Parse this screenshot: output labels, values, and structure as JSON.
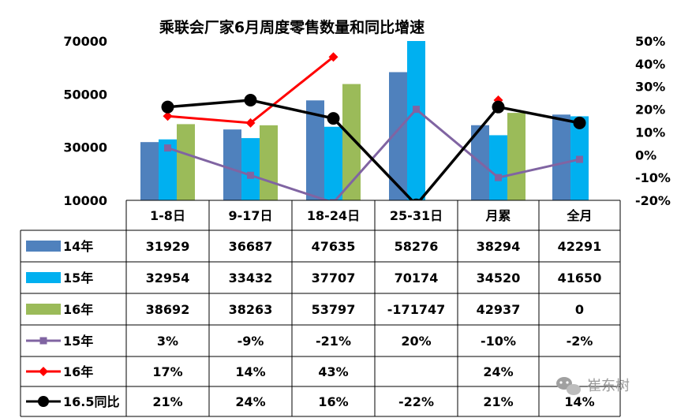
{
  "chart_data": {
    "type": "bar",
    "title": "乘联会厂家6月周度零售数量和同比增速",
    "categories": [
      "1-8日",
      "9-17日",
      "18-24日",
      "25-31日",
      "月累",
      "全月"
    ],
    "y_left": {
      "ticks": [
        "70000",
        "50000",
        "30000",
        "10000"
      ],
      "range": [
        10000,
        70000
      ]
    },
    "y_right": {
      "ticks": [
        "50%",
        "40%",
        "30%",
        "20%",
        "10%",
        "0%",
        "-10%",
        "-20%"
      ],
      "range": [
        -20,
        50
      ]
    },
    "grid": false,
    "legend": "table-left",
    "bar_series": [
      {
        "name": "14年",
        "color": "#4f81bd",
        "values": [
          31929,
          36687,
          47635,
          58276,
          38294,
          42291
        ],
        "labels": [
          "31929",
          "36687",
          "47635",
          "58276",
          "38294",
          "42291"
        ]
      },
      {
        "name": "15年",
        "color": "#00b0f0",
        "values": [
          32954,
          33432,
          37707,
          70174,
          34520,
          41650
        ],
        "labels": [
          "32954",
          "33432",
          "37707",
          "70174",
          "34520",
          "41650"
        ]
      },
      {
        "name": "16年",
        "color": "#9bbb59",
        "values": [
          38692,
          38263,
          53797,
          -171747,
          42937,
          0
        ],
        "labels": [
          "38692",
          "38263",
          "53797",
          "-171747",
          "42937",
          "0"
        ]
      }
    ],
    "line_series": [
      {
        "name": "15年",
        "color": "#8064a2",
        "marker": "square",
        "values": [
          3,
          -9,
          -21,
          20,
          -10,
          -2
        ],
        "labels": [
          "3%",
          "-9%",
          "-21%",
          "20%",
          "-10%",
          "-2%"
        ]
      },
      {
        "name": "16年",
        "color": "#ff0000",
        "marker": "diamond",
        "values": [
          17,
          14,
          43,
          null,
          24,
          null
        ],
        "labels": [
          "17%",
          "14%",
          "43%",
          "",
          "24%",
          ""
        ]
      },
      {
        "name": "16.5同比",
        "color": "#000000",
        "marker": "circle",
        "values": [
          21,
          24,
          16,
          -22,
          21,
          14
        ],
        "labels": [
          "21%",
          "24%",
          "16%",
          "-22%",
          "21%",
          "14%"
        ]
      }
    ]
  },
  "watermark": {
    "text": "崔东树",
    "icon": "wechat-icon"
  }
}
